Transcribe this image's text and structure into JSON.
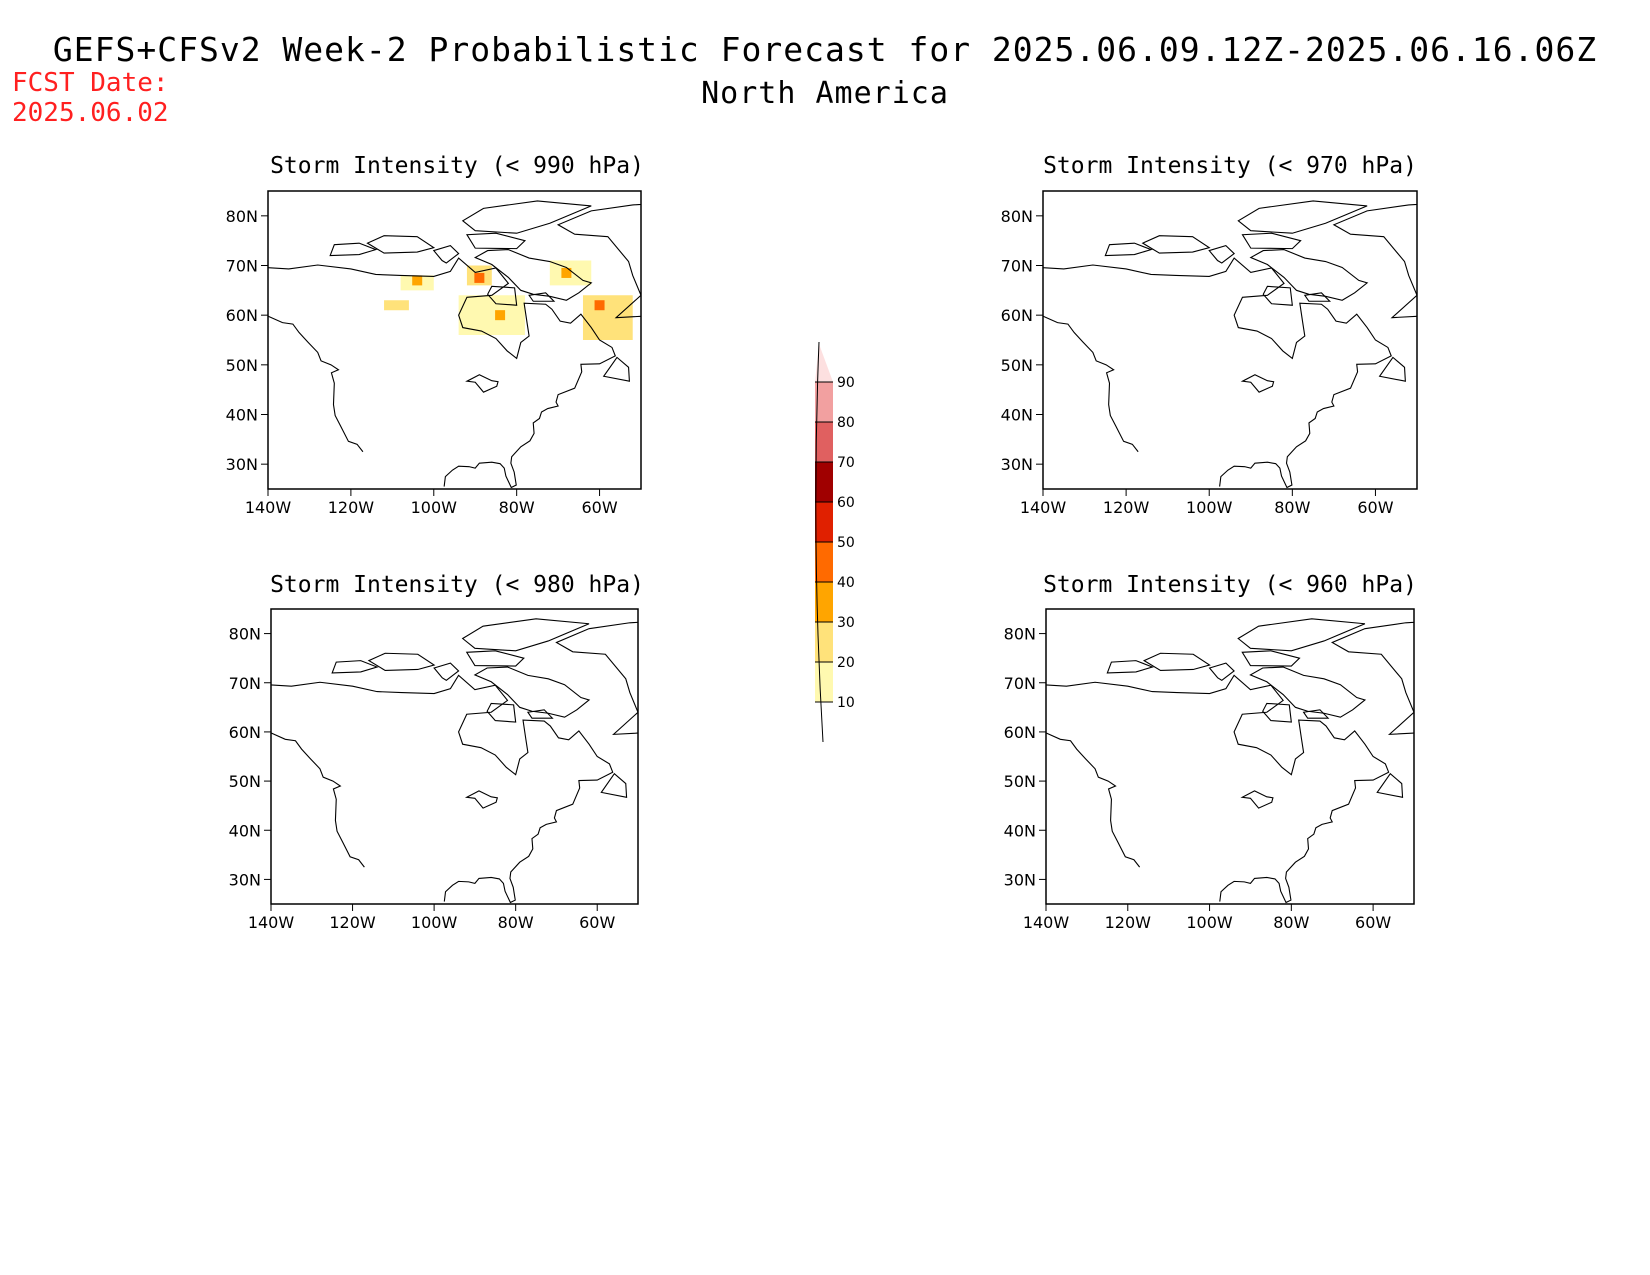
{
  "header": {
    "title": "GEFS+CFSv2 Week-2 Probabilistic Forecast for 2025.06.09.12Z-2025.06.16.06Z",
    "region": "North America",
    "fcst_label": "FCST Date:",
    "fcst_date": "2025.06.02"
  },
  "colors": {
    "fcst_text": "#ff2020",
    "scale": [
      "#fff9b0",
      "#ffe27a",
      "#ffa500",
      "#ff6a00",
      "#e02000",
      "#a00000",
      "#e06060",
      "#f2a0a0",
      "#fde0e0"
    ]
  },
  "panels": [
    {
      "id": "p990",
      "title": "Storm Intensity (< 990 hPa)"
    },
    {
      "id": "p970",
      "title": "Storm Intensity (< 970 hPa)"
    },
    {
      "id": "p980",
      "title": "Storm Intensity (< 980 hPa)"
    },
    {
      "id": "p960",
      "title": "Storm Intensity (< 960 hPa)"
    }
  ],
  "axes": {
    "lat_labels": [
      "80N",
      "70N",
      "60N",
      "50N",
      "40N",
      "30N"
    ],
    "lon_labels": [
      "140W",
      "120W",
      "100W",
      "80W",
      "60W"
    ]
  },
  "colorbar": {
    "labels": [
      "10",
      "20",
      "30",
      "40",
      "50",
      "60",
      "70",
      "80",
      "90"
    ]
  }
}
